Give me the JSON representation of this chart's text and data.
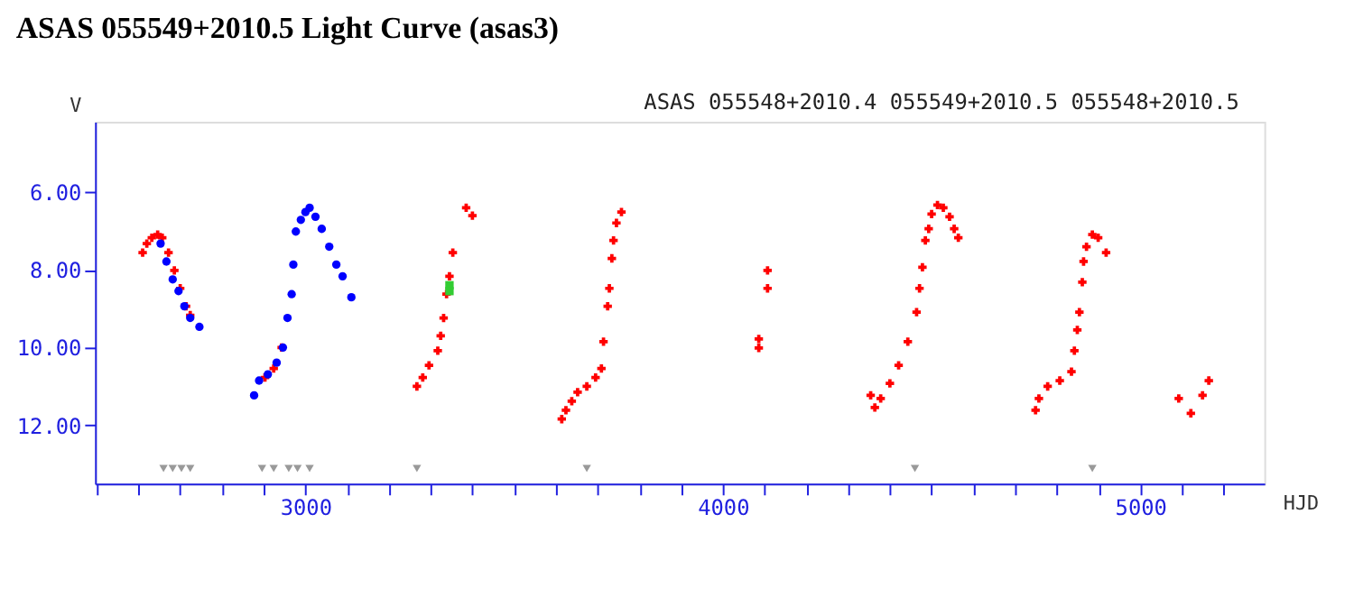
{
  "chart_data": {
    "type": "scatter",
    "title": "ASAS 055549+2010.5 Light Curve (asas3)",
    "subtitle": "ASAS 055548+2010.4 055549+2010.5 055548+2010.5",
    "xlabel": "HJD",
    "ylabel": "V",
    "xlim": [
      2496,
      5297
    ],
    "ylim": [
      13.5,
      4.2
    ],
    "xticks": [
      {
        "value": 2500,
        "label": null
      },
      {
        "value": 2600,
        "label": null
      },
      {
        "value": 2700,
        "label": null
      },
      {
        "value": 2800,
        "label": null
      },
      {
        "value": 2900,
        "label": null
      },
      3000,
      {
        "value": 3100,
        "label": null
      },
      {
        "value": 3200,
        "label": null
      },
      {
        "value": 3300,
        "label": null
      },
      {
        "value": 3400,
        "label": null
      },
      {
        "value": 3500,
        "label": null
      },
      {
        "value": 3600,
        "label": null
      },
      {
        "value": 3700,
        "label": null
      },
      {
        "value": 3800,
        "label": null
      },
      {
        "value": 3900,
        "label": null
      },
      4000,
      {
        "value": 4100,
        "label": null
      },
      {
        "value": 4200,
        "label": null
      },
      {
        "value": 4300,
        "label": null
      },
      {
        "value": 4400,
        "label": null
      },
      {
        "value": 4500,
        "label": null
      },
      {
        "value": 4600,
        "label": null
      },
      {
        "value": 4700,
        "label": null
      },
      {
        "value": 4800,
        "label": null
      },
      {
        "value": 4900,
        "label": null
      },
      5000,
      {
        "value": 5100,
        "label": null
      },
      {
        "value": 5200,
        "label": null
      }
    ],
    "yticks": [
      {
        "value": 6,
        "label": "6.00"
      },
      {
        "value": 8,
        "label": "8.00"
      },
      {
        "value": 10,
        "label": "10.00"
      },
      {
        "value": 12,
        "label": "12.00"
      }
    ],
    "grid": false,
    "series": [
      {
        "color": "#ff0000",
        "marker": "cross",
        "x": [
          2610,
          2620,
          2632,
          2646,
          2657,
          2672,
          2686,
          2700,
          2714,
          2724,
          2903,
          2924,
          2943,
          3267,
          3281,
          3296,
          3317,
          3324,
          3331,
          3338,
          3345,
          3353,
          3385,
          3400,
          3614,
          3624,
          3638,
          3652,
          3674,
          3695,
          3709,
          3714,
          3724,
          3728,
          3734,
          3738,
          3745,
          3757,
          4086,
          4086,
          4107,
          4107,
          4354,
          4364,
          4378,
          4400,
          4421,
          4443,
          4464,
          4471,
          4478,
          4485,
          4493,
          4500,
          4514,
          4528,
          4543,
          4554,
          4564,
          4749,
          4757,
          4778,
          4807,
          4835,
          4842,
          4849,
          4854,
          4861,
          4864,
          4871,
          4885,
          4899,
          4918,
          5092,
          5121,
          5149,
          5164
        ],
        "values": [
          7.56,
          7.33,
          7.18,
          7.1,
          7.18,
          7.56,
          8.02,
          8.48,
          8.94,
          9.17,
          10.77,
          10.54,
          10.0,
          11.0,
          10.77,
          10.46,
          10.08,
          9.7,
          9.24,
          8.63,
          8.17,
          7.56,
          6.41,
          6.61,
          11.84,
          11.61,
          11.38,
          11.15,
          11.0,
          10.77,
          10.54,
          9.85,
          8.94,
          8.48,
          7.71,
          7.25,
          6.8,
          6.52,
          9.78,
          10.01,
          8.48,
          8.02,
          11.23,
          11.54,
          11.31,
          10.92,
          10.46,
          9.85,
          9.09,
          8.48,
          7.94,
          7.25,
          6.95,
          6.57,
          6.34,
          6.41,
          6.64,
          6.95,
          7.18,
          11.61,
          11.31,
          11.0,
          10.85,
          10.62,
          10.08,
          9.55,
          9.09,
          8.32,
          7.79,
          7.41,
          7.1,
          7.18,
          7.56,
          11.31,
          11.69,
          11.23,
          10.85
        ]
      },
      {
        "color": "#0000ff",
        "marker": "circle",
        "x": [
          2653,
          2667,
          2682,
          2696,
          2710,
          2724,
          2746,
          2877,
          2889,
          2910,
          2931,
          2946,
          2957,
          2967,
          2971,
          2977,
          2989,
          3000,
          3010,
          3024,
          3039,
          3057,
          3074,
          3089,
          3110
        ],
        "values": [
          7.33,
          7.79,
          8.25,
          8.55,
          8.94,
          9.24,
          9.47,
          11.23,
          10.85,
          10.69,
          10.39,
          10.0,
          9.24,
          8.63,
          7.87,
          7.02,
          6.72,
          6.52,
          6.41,
          6.64,
          6.95,
          7.41,
          7.87,
          8.17,
          8.71
        ]
      },
      {
        "color": "#33cc33",
        "marker": "square",
        "x": [
          3345,
          3345
        ],
        "values": [
          8.4,
          8.55
        ]
      },
      {
        "color": "#999999",
        "marker": "triangle",
        "x": [
          2660,
          2682,
          2703,
          2724,
          2896,
          2924,
          2960,
          2981,
          3010,
          3267,
          3674,
          4460,
          4885
        ],
        "values": [
          13.11,
          13.11,
          13.11,
          13.11,
          13.11,
          13.11,
          13.11,
          13.11,
          13.11,
          13.11,
          13.11,
          13.11,
          13.11
        ]
      }
    ]
  }
}
